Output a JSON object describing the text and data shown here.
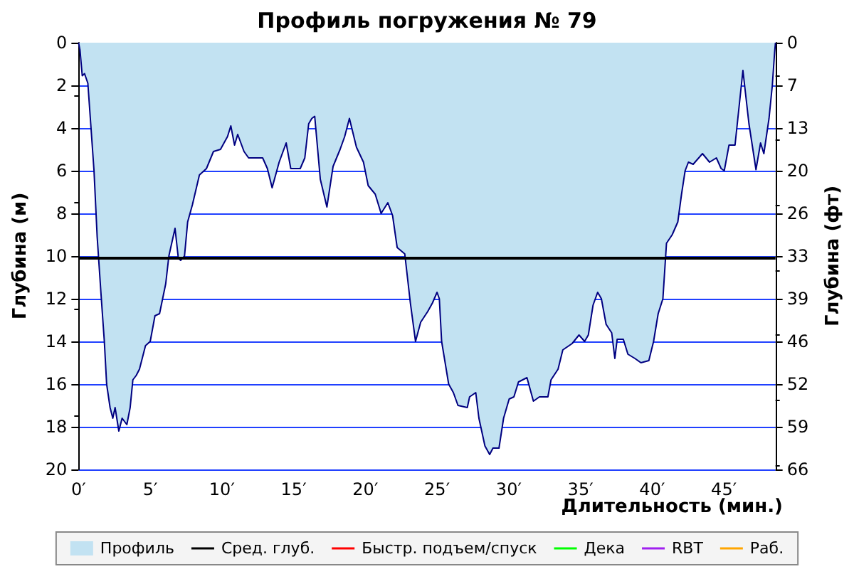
{
  "chart_data": {
    "type": "area",
    "title": "Профиль погружения № 79",
    "xlabel": "Длительность (мин.)",
    "ylabel": "Глубина (м)",
    "y2label": "Глубина (фт)",
    "xlim": [
      0,
      48.6
    ],
    "xticks": [
      {
        "value": 0,
        "label": "0′"
      },
      {
        "value": 5,
        "label": "5′"
      },
      {
        "value": 10,
        "label": "10′"
      },
      {
        "value": 15,
        "label": "15′"
      },
      {
        "value": 20,
        "label": "20′"
      },
      {
        "value": 25,
        "label": "25′"
      },
      {
        "value": 30,
        "label": "30′"
      },
      {
        "value": 35,
        "label": "35′"
      },
      {
        "value": 40,
        "label": "40′"
      },
      {
        "value": 45,
        "label": "45′"
      }
    ],
    "ylim": [
      20,
      0
    ],
    "yticks": [
      0,
      2,
      4,
      6,
      8,
      10,
      12,
      14,
      16,
      18,
      20
    ],
    "y2lim": [
      65.62,
      0
    ],
    "y2ticks": [
      {
        "value": 0,
        "label": "0"
      },
      {
        "value": 6.56,
        "label": "7"
      },
      {
        "value": 13.12,
        "label": "13"
      },
      {
        "value": 19.69,
        "label": "20"
      },
      {
        "value": 26.25,
        "label": "26"
      },
      {
        "value": 32.81,
        "label": "33"
      },
      {
        "value": 39.37,
        "label": "39"
      },
      {
        "value": 45.93,
        "label": "46"
      },
      {
        "value": 52.49,
        "label": "52"
      },
      {
        "value": 59.06,
        "label": "59"
      },
      {
        "value": 65.62,
        "label": "66"
      }
    ],
    "grid": "y",
    "legend": "bottom",
    "ref_lines": [
      {
        "axis": "y",
        "value": 10.1,
        "label": "Сред. глуб.",
        "color": "#000000"
      }
    ],
    "x": [
      0,
      0.1,
      0.26,
      0.42,
      0.65,
      0.85,
      1.08,
      1.3,
      1.57,
      1.8,
      1.96,
      2.2,
      2.39,
      2.55,
      2.81,
      3.04,
      3.37,
      3.6,
      3.79,
      4.02,
      4.25,
      4.67,
      5.0,
      5.33,
      5.65,
      6.08,
      6.3,
      6.73,
      6.96,
      7.12,
      7.39,
      7.61,
      7.94,
      8.43,
      8.92,
      9.41,
      9.9,
      10.39,
      10.62,
      10.88,
      11.1,
      11.54,
      11.86,
      12.35,
      12.84,
      13.17,
      13.5,
      13.99,
      14.48,
      14.8,
      15.46,
      15.78,
      16.05,
      16.27,
      16.47,
      16.86,
      17.32,
      17.75,
      18.24,
      18.56,
      18.89,
      19.38,
      19.87,
      20.2,
      20.69,
      21.1,
      21.57,
      21.9,
      22.22,
      22.75,
      23.14,
      23.5,
      23.86,
      24.35,
      24.68,
      25.0,
      25.16,
      25.32,
      25.81,
      26.14,
      26.46,
      27.11,
      27.27,
      27.7,
      27.92,
      28.34,
      28.67,
      28.9,
      29.32,
      29.64,
      30.03,
      30.36,
      30.68,
      31.27,
      31.72,
      32.14,
      32.73,
      32.95,
      33.44,
      33.77,
      34.42,
      34.9,
      35.29,
      35.55,
      35.88,
      36.2,
      36.46,
      36.79,
      37.18,
      37.4,
      37.56,
      37.99,
      38.31,
      38.8,
      39.22,
      39.77,
      40.1,
      40.42,
      40.75,
      41.0,
      41.4,
      41.79,
      42.05,
      42.3,
      42.53,
      42.86,
      43.51,
      44.0,
      44.48,
      44.81,
      45.03,
      45.36,
      45.78,
      46.33,
      46.75,
      47.24,
      47.56,
      47.79,
      48.15,
      48.38,
      48.54,
      48.6
    ],
    "series": [
      {
        "name": "Профиль",
        "color": "#c2e2f2",
        "values": [
          0,
          0.33,
          1.55,
          1.45,
          1.9,
          3.8,
          6.0,
          9.1,
          11.8,
          14,
          16,
          17.1,
          17.6,
          17.1,
          18.2,
          17.6,
          17.9,
          17.1,
          15.8,
          15.6,
          15.3,
          14.2,
          14,
          12.8,
          12.7,
          11.3,
          10,
          8.7,
          10.1,
          10.2,
          10,
          8.4,
          7.6,
          6.2,
          5.9,
          5.1,
          5.0,
          4.4,
          3.9,
          4.8,
          4.3,
          5.1,
          5.4,
          5.4,
          5.4,
          5.9,
          6.8,
          5.6,
          4.7,
          5.9,
          5.9,
          5.4,
          3.8,
          3.55,
          3.45,
          6.4,
          7.7,
          5.8,
          5.0,
          4.4,
          3.55,
          4.9,
          5.6,
          6.7,
          7.1,
          8.0,
          7.5,
          8.1,
          9.6,
          9.9,
          12.2,
          14,
          13.1,
          12.6,
          12.2,
          11.7,
          12.0,
          14,
          16,
          16.4,
          17,
          17.1,
          16.6,
          16.4,
          17.6,
          18.9,
          19.3,
          19.0,
          19.0,
          17.6,
          16.7,
          16.6,
          15.9,
          15.7,
          16.8,
          16.6,
          16.6,
          15.8,
          15.3,
          14.4,
          14.1,
          13.7,
          14.0,
          13.7,
          12.3,
          11.7,
          12.0,
          13.2,
          13.6,
          14.8,
          13.9,
          13.9,
          14.6,
          14.8,
          15.0,
          14.9,
          14,
          12.7,
          12.0,
          9.4,
          9.0,
          8.4,
          7.1,
          6.0,
          5.6,
          5.7,
          5.2,
          5.6,
          5.4,
          5.9,
          6.0,
          4.8,
          4.8,
          1.3,
          3.8,
          5.95,
          4.7,
          5.2,
          3.55,
          2.0,
          0.45,
          0
        ]
      },
      {
        "name": "Быстр. подъем/спуск",
        "type": "line",
        "color": "#ff0000",
        "values": [
          null,
          null,
          null,
          null,
          null,
          null,
          null,
          null,
          null,
          null,
          null,
          null,
          null,
          null,
          null,
          null,
          null,
          null,
          null,
          null,
          null,
          null,
          null,
          null,
          null,
          null,
          null,
          null,
          null,
          null,
          null,
          null,
          null,
          null,
          null,
          null,
          null,
          null,
          null,
          null,
          null,
          null,
          null,
          null,
          null,
          null,
          null,
          null,
          null,
          null,
          null,
          null,
          null,
          null,
          null,
          null,
          null,
          null,
          null,
          null,
          null,
          null,
          null,
          null,
          null,
          null,
          null,
          null,
          null,
          null,
          null,
          null,
          null,
          null,
          null,
          null,
          null,
          null,
          null,
          null,
          null,
          null,
          null,
          null,
          null,
          null,
          null,
          null,
          null,
          null,
          null,
          null,
          null,
          null,
          null,
          null,
          null,
          null,
          null,
          null,
          null,
          null,
          null,
          null,
          null,
          null,
          null,
          null,
          null,
          null,
          null,
          null,
          null,
          null,
          null,
          null,
          null,
          null,
          null,
          null,
          null,
          null,
          null,
          null,
          null,
          null,
          null,
          null,
          null,
          null,
          null,
          null,
          null,
          null,
          null,
          null,
          null,
          null,
          null,
          null,
          null,
          null
        ]
      },
      {
        "name": "Дека",
        "type": "line",
        "color": "#00ff00",
        "values": [
          null,
          null,
          null,
          null,
          null,
          null,
          null,
          null,
          null,
          null,
          null,
          null,
          null,
          null,
          null,
          null,
          null,
          null,
          null,
          null,
          null,
          null,
          null,
          null,
          null,
          null,
          null,
          null,
          null,
          null,
          null,
          null,
          null,
          null,
          null,
          null,
          null,
          null,
          null,
          null,
          null,
          null,
          null,
          null,
          null,
          null,
          null,
          null,
          null,
          null,
          null,
          null,
          null,
          null,
          null,
          null,
          null,
          null,
          null,
          null,
          null,
          null,
          null,
          null,
          null,
          null,
          null,
          null,
          null,
          null,
          null,
          null,
          null,
          null,
          null,
          null,
          null,
          null,
          null,
          null,
          null,
          null,
          null,
          null,
          null,
          null,
          null,
          null,
          null,
          null,
          null,
          null,
          null,
          null,
          null,
          null,
          null,
          null,
          null,
          null,
          null,
          null,
          null,
          null,
          null,
          null,
          null,
          null,
          null,
          null,
          null,
          null,
          null,
          null,
          null,
          null,
          null,
          null,
          null,
          null,
          null,
          null,
          null,
          null,
          null,
          null,
          null,
          null,
          null,
          null,
          null,
          null,
          null,
          null,
          null,
          null,
          null,
          null,
          null,
          null,
          null,
          null
        ]
      },
      {
        "name": "RBT",
        "type": "line",
        "color": "#a020f0",
        "values": [
          null,
          null,
          null,
          null,
          null,
          null,
          null,
          null,
          null,
          null,
          null,
          null,
          null,
          null,
          null,
          null,
          null,
          null,
          null,
          null,
          null,
          null,
          null,
          null,
          null,
          null,
          null,
          null,
          null,
          null,
          null,
          null,
          null,
          null,
          null,
          null,
          null,
          null,
          null,
          null,
          null,
          null,
          null,
          null,
          null,
          null,
          null,
          null,
          null,
          null,
          null,
          null,
          null,
          null,
          null,
          null,
          null,
          null,
          null,
          null,
          null,
          null,
          null,
          null,
          null,
          null,
          null,
          null,
          null,
          null,
          null,
          null,
          null,
          null,
          null,
          null,
          null,
          null,
          null,
          null,
          null,
          null,
          null,
          null,
          null,
          null,
          null,
          null,
          null,
          null,
          null,
          null,
          null,
          null,
          null,
          null,
          null,
          null,
          null,
          null,
          null,
          null,
          null,
          null,
          null,
          null,
          null,
          null,
          null,
          null,
          null,
          null,
          null,
          null,
          null,
          null,
          null,
          null,
          null,
          null,
          null,
          null,
          null,
          null,
          null,
          null,
          null,
          null,
          null,
          null,
          null,
          null,
          null,
          null,
          null,
          null,
          null,
          null,
          null,
          null,
          null,
          null
        ]
      },
      {
        "name": "Раб.",
        "type": "line",
        "color": "#ffa500",
        "values": [
          null,
          null,
          null,
          null,
          null,
          null,
          null,
          null,
          null,
          null,
          null,
          null,
          null,
          null,
          null,
          null,
          null,
          null,
          null,
          null,
          null,
          null,
          null,
          null,
          null,
          null,
          null,
          null,
          null,
          null,
          null,
          null,
          null,
          null,
          null,
          null,
          null,
          null,
          null,
          null,
          null,
          null,
          null,
          null,
          null,
          null,
          null,
          null,
          null,
          null,
          null,
          null,
          null,
          null,
          null,
          null,
          null,
          null,
          null,
          null,
          null,
          null,
          null,
          null,
          null,
          null,
          null,
          null,
          null,
          null,
          null,
          null,
          null,
          null,
          null,
          null,
          null,
          null,
          null,
          null,
          null,
          null,
          null,
          null,
          null,
          null,
          null,
          null,
          null,
          null,
          null,
          null,
          null,
          null,
          null,
          null,
          null,
          null,
          null,
          null,
          null,
          null,
          null,
          null,
          null,
          null,
          null,
          null,
          null,
          null,
          null,
          null,
          null,
          null,
          null,
          null,
          null,
          null,
          null,
          null,
          null,
          null,
          null,
          null,
          null,
          null,
          null,
          null,
          null,
          null,
          null,
          null,
          null,
          null,
          null,
          null,
          null,
          null,
          null,
          null,
          null,
          null
        ]
      }
    ]
  }
}
